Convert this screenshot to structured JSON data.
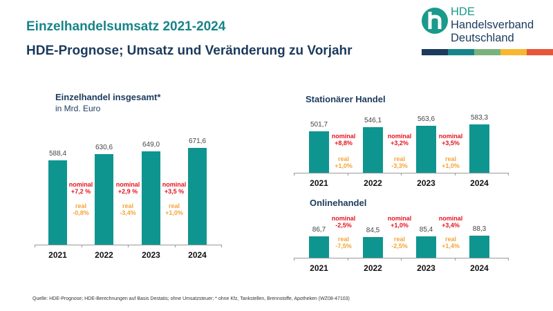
{
  "header": {
    "title": "Einzelhandelsumsatz 2021-2024",
    "subtitle": "HDE-Prognose; Umsatz und Veränderung zu Vorjahr"
  },
  "logo": {
    "line1": "HDE",
    "line2": "Handelsverband",
    "line3": "Deutschland",
    "stripe_colors": [
      "#1b3a5c",
      "#17848a",
      "#7ab27c",
      "#f7b731",
      "#e8553b"
    ]
  },
  "colors": {
    "bar": "#0f9590",
    "nominal": "#e3141f",
    "real": "#f3a53a"
  },
  "chart_data": [
    {
      "type": "bar",
      "title": "Einzelhandel insgesamt*",
      "subtitle": "in Mrd. Euro",
      "categories": [
        "2021",
        "2022",
        "2023",
        "2024"
      ],
      "values": [
        588.4,
        630.6,
        649.0,
        671.6
      ],
      "value_labels": [
        "588,4",
        "630,6",
        "649,0",
        "671,6"
      ],
      "annotations": [
        {
          "nominal_label": "nominal",
          "nominal": "+7,2 %",
          "real_label": "real",
          "real": "-0,8%"
        },
        {
          "nominal_label": "nominal",
          "nominal": "+2,9 %",
          "real_label": "real",
          "real": "-3,4%"
        },
        {
          "nominal_label": "nominal",
          "nominal": "+3,5 %",
          "real_label": "real",
          "real": "+1,0%"
        }
      ]
    },
    {
      "type": "bar",
      "title": "Stationärer Handel",
      "categories": [
        "2021",
        "2022",
        "2023",
        "2024"
      ],
      "values": [
        501.7,
        546.1,
        563.6,
        583.3
      ],
      "value_labels": [
        "501,7",
        "546,1",
        "563,6",
        "583,3"
      ],
      "annotations": [
        {
          "nominal_label": "nominal",
          "nominal": "+8,8%",
          "real_label": "real",
          "real": "+1,0%"
        },
        {
          "nominal_label": "nominal",
          "nominal": "+3,2%",
          "real_label": "real",
          "real": "-3,3%"
        },
        {
          "nominal_label": "nominal",
          "nominal": "+3,5%",
          "real_label": "real",
          "real": "+1,0%"
        }
      ]
    },
    {
      "type": "bar",
      "title": "Onlinehandel",
      "categories": [
        "2021",
        "2022",
        "2023",
        "2024"
      ],
      "values": [
        86.7,
        84.5,
        85.4,
        88.3
      ],
      "value_labels": [
        "86,7",
        "84,5",
        "85,4",
        "88,3"
      ],
      "annotations": [
        {
          "nominal_label": "nominal",
          "nominal": "-2,5%",
          "real_label": "real",
          "real": "-7,5%"
        },
        {
          "nominal_label": "nominal",
          "nominal": "+1,0%",
          "real_label": "real",
          "real": "-2,5%"
        },
        {
          "nominal_label": "nominal",
          "nominal": "+3,4%",
          "real_label": "real",
          "real": "+1,4%"
        }
      ]
    }
  ],
  "footer": {
    "source": "Quelle: HDE-Prognose; HDE-Berechnungen auf Basis Destatis; ohne Umsatzsteuer; * ohne Kfz, Tankstellen, Brennstoffe, Apotheken (WZ08-47103)"
  }
}
